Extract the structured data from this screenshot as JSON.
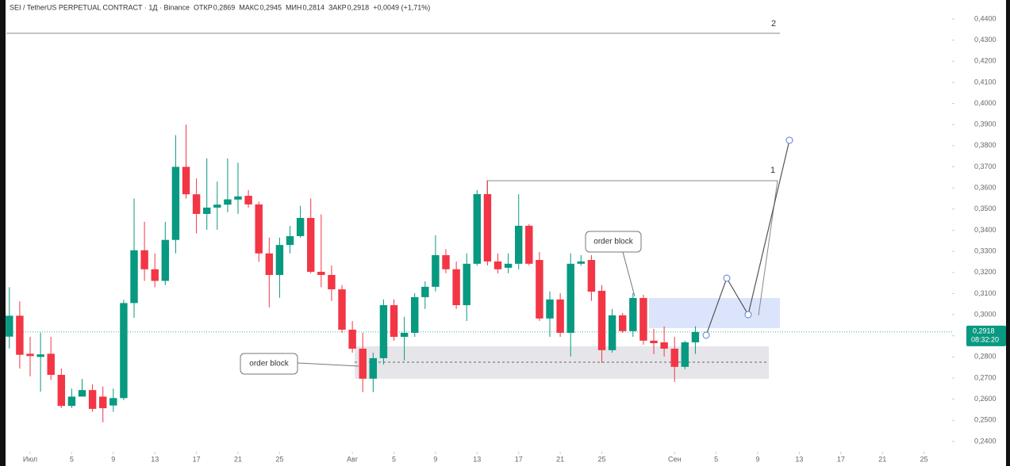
{
  "chart_data": {
    "type": "candlestick",
    "title": "SEI / TetherUS PERPETUAL CONTRACT · 1Д · Binance",
    "ohlc_labels": [
      {
        "label": "ОТКР",
        "value": "0,2869"
      },
      {
        "label": "МАКС",
        "value": "0,2945"
      },
      {
        "label": "МИН",
        "value": "0,2814"
      },
      {
        "label": "ЗАКР",
        "value": "0,2918"
      }
    ],
    "change": "+0,0049 (+1,71%)",
    "up_color": "#089981",
    "down_color": "#f23645",
    "x": [
      -2,
      -1,
      0,
      1,
      2,
      3,
      4,
      5,
      6,
      7,
      8,
      9,
      10,
      11,
      12,
      13,
      14,
      15,
      16,
      17,
      18,
      19,
      20,
      21,
      22,
      23,
      24,
      25,
      26,
      27,
      28,
      29,
      30,
      31,
      32,
      33,
      34,
      35,
      36,
      37,
      38,
      39,
      40,
      41,
      42,
      43,
      44,
      45,
      46,
      47,
      48,
      49,
      50,
      51,
      52,
      53,
      54,
      55,
      56,
      57,
      58,
      59,
      60,
      61,
      62,
      63,
      64
    ],
    "open": [
      0.2896,
      0.2995,
      0.2815,
      0.28,
      0.2815,
      0.2715,
      0.2568,
      0.2612,
      0.2643,
      0.2612,
      0.257,
      0.2605,
      0.3055,
      0.3305,
      0.3215,
      0.316,
      0.3354,
      0.37,
      0.357,
      0.3477,
      0.3507,
      0.3521,
      0.3545,
      0.3563,
      0.3522,
      0.329,
      0.3188,
      0.333,
      0.3372,
      0.3458,
      0.3203,
      0.3188,
      0.312,
      0.2929,
      0.2839,
      0.2697,
      0.2794,
      0.3045,
      0.2895,
      0.2914,
      0.3083,
      0.3132,
      0.3282,
      0.3215,
      0.3045,
      0.3241,
      0.3571,
      0.3252,
      0.3222,
      0.3241,
      0.3421,
      0.3259,
      0.2982,
      0.3072,
      0.2914,
      0.3241,
      0.3259,
      0.3113,
      0.2832,
      0.2997,
      0.2922,
      0.3079,
      0.2877,
      0.2869,
      0.2839,
      0.2753,
      0.2869
    ],
    "high": [
      0.313,
      0.3063,
      0.2895,
      0.2915,
      0.2895,
      0.2745,
      0.265,
      0.2696,
      0.267,
      0.266,
      0.265,
      0.307,
      0.355,
      0.344,
      0.329,
      0.344,
      0.385,
      0.39,
      0.3645,
      0.374,
      0.363,
      0.374,
      0.372,
      0.359,
      0.3535,
      0.3365,
      0.3365,
      0.342,
      0.3515,
      0.355,
      0.3475,
      0.3233,
      0.314,
      0.297,
      0.2914,
      0.282,
      0.3072,
      0.3072,
      0.299,
      0.3102,
      0.3158,
      0.3376,
      0.331,
      0.3252,
      0.329,
      0.359,
      0.3635,
      0.329,
      0.329,
      0.357,
      0.3428,
      0.3297,
      0.311,
      0.3102,
      0.329,
      0.3282,
      0.3282,
      0.314,
      0.3027,
      0.3008,
      0.3102,
      0.3094,
      0.2933,
      0.2944,
      0.2895,
      0.2877,
      0.2945
    ],
    "low": [
      0.284,
      0.2745,
      0.2708,
      0.2635,
      0.269,
      0.2558,
      0.2558,
      0.262,
      0.254,
      0.249,
      0.254,
      0.2595,
      0.2985,
      0.316,
      0.313,
      0.314,
      0.329,
      0.355,
      0.3385,
      0.3402,
      0.3402,
      0.3485,
      0.3477,
      0.3507,
      0.325,
      0.3035,
      0.308,
      0.329,
      0.3365,
      0.3196,
      0.313,
      0.3065,
      0.2914,
      0.282,
      0.2633,
      0.2633,
      0.2764,
      0.2877,
      0.2783,
      0.2895,
      0.3027,
      0.311,
      0.3196,
      0.3027,
      0.297,
      0.3233,
      0.3233,
      0.3196,
      0.3196,
      0.3215,
      0.3233,
      0.297,
      0.2895,
      0.2895,
      0.2802,
      0.3233,
      0.3065,
      0.2772,
      0.282,
      0.2914,
      0.2895,
      0.2858,
      0.2813,
      0.2802,
      0.2682,
      0.2742,
      0.2814
    ],
    "close": [
      0.2995,
      0.281,
      0.2804,
      0.2812,
      0.2715,
      0.2568,
      0.2612,
      0.2643,
      0.2554,
      0.2557,
      0.2605,
      0.3055,
      0.3305,
      0.3215,
      0.316,
      0.3354,
      0.37,
      0.357,
      0.3477,
      0.3507,
      0.3521,
      0.3546,
      0.356,
      0.3522,
      0.329,
      0.3188,
      0.333,
      0.3372,
      0.3458,
      0.3203,
      0.3188,
      0.312,
      0.2929,
      0.2839,
      0.2697,
      0.2794,
      0.3045,
      0.2895,
      0.2914,
      0.3083,
      0.3132,
      0.3282,
      0.3215,
      0.3045,
      0.3241,
      0.3571,
      0.3252,
      0.3215,
      0.3241,
      0.3421,
      0.3241,
      0.2982,
      0.3072,
      0.2914,
      0.3241,
      0.3252,
      0.3109,
      0.2832,
      0.2997,
      0.2922,
      0.3079,
      0.2877,
      0.2865,
      0.2839,
      0.2753,
      0.2869,
      0.2918
    ],
    "xlim": [
      -2.29,
      88.7
    ],
    "xticks": [
      {
        "value": 0,
        "label": "Июл"
      },
      {
        "value": 4,
        "label": "5"
      },
      {
        "value": 8,
        "label": "9"
      },
      {
        "value": 12,
        "label": "13"
      },
      {
        "value": 16,
        "label": "17"
      },
      {
        "value": 20,
        "label": "21"
      },
      {
        "value": 24,
        "label": "25"
      },
      {
        "value": 31,
        "label": "Авг"
      },
      {
        "value": 35,
        "label": "5"
      },
      {
        "value": 39,
        "label": "9"
      },
      {
        "value": 43,
        "label": "13"
      },
      {
        "value": 47,
        "label": "17"
      },
      {
        "value": 51,
        "label": "21"
      },
      {
        "value": 55,
        "label": "25"
      },
      {
        "value": 62,
        "label": "Сен"
      },
      {
        "value": 66,
        "label": "5"
      },
      {
        "value": 70,
        "label": "9"
      },
      {
        "value": 74,
        "label": "13"
      },
      {
        "value": 78,
        "label": "17"
      },
      {
        "value": 82,
        "label": "21"
      },
      {
        "value": 86,
        "label": "25"
      }
    ],
    "ylim": [
      0.2351,
      0.449
    ],
    "yticks": [
      {
        "value": 0.24,
        "label": "0,2400"
      },
      {
        "value": 0.25,
        "label": "0,2500"
      },
      {
        "value": 0.26,
        "label": "0,2600"
      },
      {
        "value": 0.27,
        "label": "0,2700"
      },
      {
        "value": 0.28,
        "label": "0,2800"
      },
      {
        "value": 0.29,
        "label": "0,2900"
      },
      {
        "value": 0.3,
        "label": "0,3000"
      },
      {
        "value": 0.31,
        "label": "0,3100"
      },
      {
        "value": 0.32,
        "label": "0,3200"
      },
      {
        "value": 0.33,
        "label": "0,3300"
      },
      {
        "value": 0.34,
        "label": "0,3400"
      },
      {
        "value": 0.35,
        "label": "0,3500"
      },
      {
        "value": 0.36,
        "label": "0,3600"
      },
      {
        "value": 0.37,
        "label": "0,3700"
      },
      {
        "value": 0.38,
        "label": "0,3800"
      },
      {
        "value": 0.39,
        "label": "0,3900"
      },
      {
        "value": 0.4,
        "label": "0,4000"
      },
      {
        "value": 0.41,
        "label": "0,4100"
      },
      {
        "value": 0.42,
        "label": "0,4200"
      },
      {
        "value": 0.43,
        "label": "0,4300"
      },
      {
        "value": 0.44,
        "label": "0,4400"
      }
    ],
    "last_price": {
      "value": 0.2918,
      "label": "0,2918"
    },
    "countdown": "08:32:20",
    "annotations": [
      "order block",
      "order block",
      "1",
      "2"
    ]
  }
}
